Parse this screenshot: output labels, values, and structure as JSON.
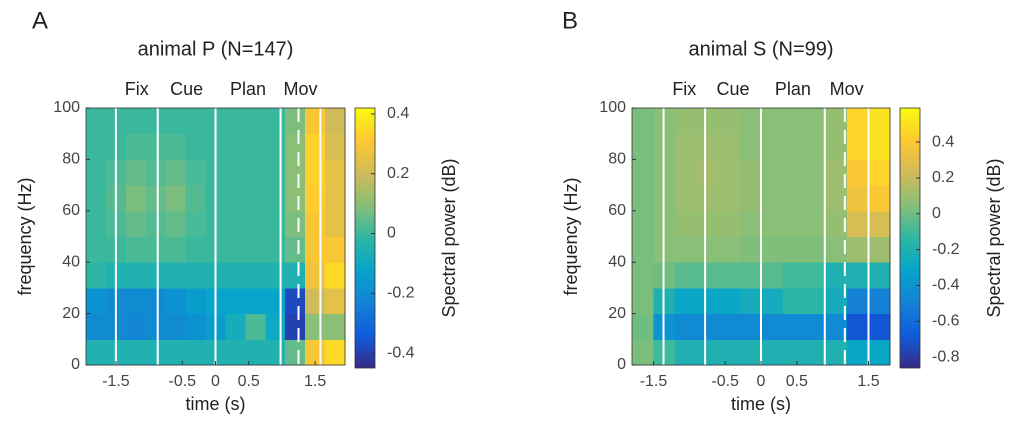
{
  "chart_data": [
    {
      "type": "heatmap",
      "panel": "A",
      "title": "animal P (N=147)",
      "colormap": "parula",
      "epoch_labels": [
        "Fix",
        "Cue",
        "Plan",
        "Mov"
      ],
      "xlabel": "time (s)",
      "ylabel": "frequency (Hz)",
      "colorbar_label": "Spectral power (dB)",
      "xlim": [
        -1.95,
        1.95
      ],
      "xticks": [
        -1.5,
        -0.5,
        0,
        0.5,
        1.5
      ],
      "ylim": [
        0,
        100
      ],
      "yticks": [
        0,
        20,
        40,
        60,
        80,
        100
      ],
      "clim": [
        -0.45,
        0.42
      ],
      "cticks": [
        -0.4,
        -0.2,
        0,
        0.2,
        0.4
      ],
      "event_lines": [
        -1.5,
        -0.87,
        0,
        0.98,
        1.58
      ],
      "dashed_lines": [
        1.25
      ],
      "x_edges": [
        -1.95,
        -1.65,
        -1.35,
        -1.05,
        -0.75,
        -0.45,
        -0.15,
        0.15,
        0.45,
        0.75,
        1.05,
        1.35,
        1.65,
        1.95
      ],
      "y_edges": [
        0,
        10,
        20,
        30,
        40,
        50,
        60,
        70,
        80,
        90,
        100
      ],
      "z": [
        [
          -0.05,
          -0.05,
          -0.05,
          -0.05,
          -0.05,
          -0.05,
          -0.05,
          -0.05,
          -0.05,
          -0.05,
          0.05,
          0.3,
          0.35
        ],
        [
          -0.2,
          -0.2,
          -0.22,
          -0.2,
          -0.2,
          -0.18,
          -0.15,
          -0.08,
          0.02,
          -0.1,
          -0.4,
          0.1,
          0.1
        ],
        [
          -0.18,
          -0.2,
          -0.2,
          -0.2,
          -0.18,
          -0.15,
          -0.12,
          -0.12,
          -0.12,
          -0.12,
          -0.38,
          0.2,
          0.25
        ],
        [
          -0.02,
          -0.05,
          -0.05,
          -0.05,
          -0.05,
          -0.05,
          -0.05,
          -0.05,
          -0.05,
          -0.05,
          -0.05,
          0.28,
          0.35
        ],
        [
          0,
          0,
          0.02,
          0.02,
          0.02,
          0,
          0,
          0,
          0,
          0,
          0.05,
          0.3,
          0.3
        ],
        [
          0,
          0.02,
          0.05,
          0.03,
          0.05,
          0.02,
          0,
          0,
          0,
          0,
          0.08,
          0.3,
          0.25
        ],
        [
          0,
          0.03,
          0.08,
          0.05,
          0.08,
          0.03,
          0,
          0,
          0,
          0,
          0.1,
          0.32,
          0.25
        ],
        [
          0,
          0.02,
          0.05,
          0.03,
          0.05,
          0.02,
          0,
          0,
          0,
          0,
          0.1,
          0.33,
          0.25
        ],
        [
          0,
          0,
          0.02,
          0.02,
          0.02,
          0,
          0,
          0,
          0,
          0,
          0.1,
          0.33,
          0.22
        ],
        [
          0,
          0,
          0,
          0,
          0,
          0,
          0,
          0,
          0,
          0,
          0.08,
          0.3,
          0.2
        ]
      ]
    },
    {
      "type": "heatmap",
      "panel": "B",
      "title": "animal S (N=99)",
      "colormap": "parula",
      "epoch_labels": [
        "Fix",
        "Cue",
        "Plan",
        "Mov"
      ],
      "xlabel": "time (s)",
      "ylabel": "frequency (Hz)",
      "colorbar_label": "Spectral power (dB)",
      "xlim": [
        -1.8,
        1.8
      ],
      "xticks": [
        -1.5,
        -0.5,
        0,
        0.5,
        1.5
      ],
      "ylim": [
        0,
        100
      ],
      "yticks": [
        0,
        20,
        40,
        60,
        80,
        100
      ],
      "clim": [
        -0.86,
        0.59
      ],
      "cticks": [
        -0.8,
        -0.6,
        -0.4,
        -0.2,
        0,
        0.2,
        0.4
      ],
      "event_lines": [
        -1.36,
        -0.78,
        0,
        0.89,
        1.5
      ],
      "dashed_lines": [
        1.17
      ],
      "x_edges": [
        -1.8,
        -1.5,
        -1.2,
        -0.9,
        -0.6,
        -0.3,
        0,
        0.3,
        0.6,
        0.9,
        1.2,
        1.5,
        1.8
      ],
      "y_edges": [
        0,
        10,
        20,
        30,
        40,
        50,
        60,
        70,
        80,
        90,
        100
      ],
      "z": [
        [
          0.02,
          -0.1,
          -0.2,
          -0.2,
          -0.2,
          -0.2,
          -0.2,
          -0.2,
          -0.2,
          -0.2,
          -0.3,
          -0.3
        ],
        [
          0,
          -0.4,
          -0.45,
          -0.45,
          -0.45,
          -0.45,
          -0.45,
          -0.45,
          -0.45,
          -0.45,
          -0.7,
          -0.7
        ],
        [
          0.02,
          -0.2,
          -0.3,
          -0.3,
          -0.3,
          -0.25,
          -0.25,
          -0.15,
          -0.15,
          -0.25,
          -0.5,
          -0.5
        ],
        [
          0.02,
          0,
          -0.05,
          -0.05,
          -0.05,
          -0.05,
          -0.05,
          -0.1,
          -0.1,
          -0.2,
          -0.2,
          -0.2
        ],
        [
          0.02,
          0.05,
          0.05,
          0.05,
          0.05,
          0.03,
          0.03,
          0.03,
          0.03,
          0.05,
          0.1,
          0.1
        ],
        [
          0.02,
          0.05,
          0.08,
          0.08,
          0.08,
          0.05,
          0.05,
          0.05,
          0.05,
          0.08,
          0.25,
          0.25
        ],
        [
          0.02,
          0.05,
          0.1,
          0.1,
          0.1,
          0.08,
          0.05,
          0.05,
          0.05,
          0.1,
          0.35,
          0.4
        ],
        [
          0.02,
          0.05,
          0.1,
          0.12,
          0.1,
          0.08,
          0.05,
          0.05,
          0.05,
          0.1,
          0.4,
          0.45
        ],
        [
          0.02,
          0.05,
          0.1,
          0.1,
          0.1,
          0.05,
          0.05,
          0.05,
          0.05,
          0.08,
          0.45,
          0.5
        ],
        [
          0.02,
          0.05,
          0.08,
          0.08,
          0.08,
          0.05,
          0.05,
          0.05,
          0.05,
          0.08,
          0.45,
          0.5
        ]
      ]
    }
  ]
}
